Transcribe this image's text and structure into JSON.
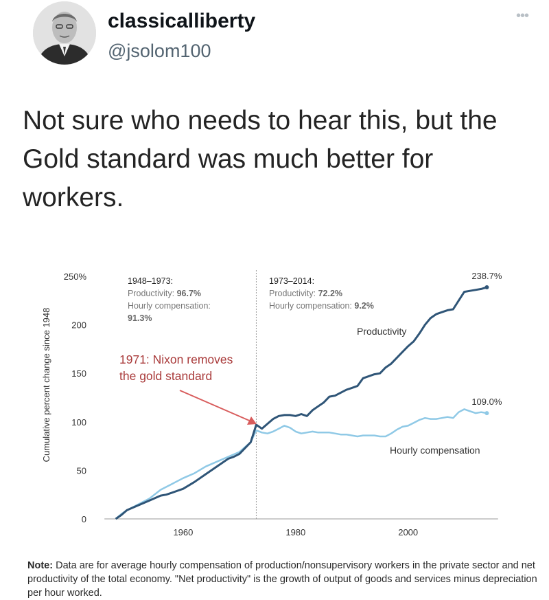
{
  "tweet": {
    "display_name": "classicalliberty",
    "handle": "@jsolom100",
    "more_icon": "more-dots-icon",
    "text": "Not sure who needs to hear this, but the Gold standard was much better for workers."
  },
  "chart_data": {
    "type": "line",
    "ylabel": "Cumulative percent change since 1948",
    "ylim": [
      0,
      250
    ],
    "xlim": [
      1945,
      2017
    ],
    "y_ticks": [
      "250%",
      "200",
      "150",
      "100",
      "50",
      "0"
    ],
    "x_ticks": [
      "1960",
      "1980",
      "2000"
    ],
    "series": [
      {
        "name": "Productivity",
        "color": "#2f5577",
        "end_label": "238.7%",
        "points": [
          [
            1948,
            0
          ],
          [
            1949,
            4
          ],
          [
            1950,
            9
          ],
          [
            1952,
            14
          ],
          [
            1954,
            19
          ],
          [
            1956,
            24
          ],
          [
            1957,
            25
          ],
          [
            1958,
            27
          ],
          [
            1960,
            31
          ],
          [
            1962,
            38
          ],
          [
            1964,
            46
          ],
          [
            1966,
            54
          ],
          [
            1967,
            58
          ],
          [
            1968,
            62
          ],
          [
            1969,
            64
          ],
          [
            1970,
            67
          ],
          [
            1971,
            73
          ],
          [
            1972,
            79
          ],
          [
            1973,
            97
          ],
          [
            1974,
            93
          ],
          [
            1975,
            98
          ],
          [
            1976,
            103
          ],
          [
            1977,
            106
          ],
          [
            1978,
            107
          ],
          [
            1979,
            107
          ],
          [
            1980,
            106
          ],
          [
            1981,
            108
          ],
          [
            1982,
            106
          ],
          [
            1983,
            112
          ],
          [
            1984,
            116
          ],
          [
            1985,
            120
          ],
          [
            1986,
            126
          ],
          [
            1987,
            127
          ],
          [
            1988,
            130
          ],
          [
            1989,
            133
          ],
          [
            1990,
            135
          ],
          [
            1991,
            137
          ],
          [
            1992,
            145
          ],
          [
            1993,
            147
          ],
          [
            1994,
            149
          ],
          [
            1995,
            150
          ],
          [
            1996,
            156
          ],
          [
            1997,
            160
          ],
          [
            1998,
            166
          ],
          [
            1999,
            172
          ],
          [
            2000,
            178
          ],
          [
            2001,
            183
          ],
          [
            2002,
            191
          ],
          [
            2003,
            200
          ],
          [
            2004,
            207
          ],
          [
            2005,
            211
          ],
          [
            2006,
            213
          ],
          [
            2007,
            215
          ],
          [
            2008,
            216
          ],
          [
            2009,
            225
          ],
          [
            2010,
            234
          ],
          [
            2011,
            235
          ],
          [
            2012,
            236
          ],
          [
            2013,
            237
          ],
          [
            2014,
            238.7
          ]
        ]
      },
      {
        "name": "Hourly compensation",
        "color": "#8fc9e6",
        "end_label": "109.0%",
        "points": [
          [
            1948,
            0
          ],
          [
            1949,
            5
          ],
          [
            1950,
            9
          ],
          [
            1952,
            15
          ],
          [
            1954,
            21
          ],
          [
            1956,
            30
          ],
          [
            1958,
            36
          ],
          [
            1960,
            42
          ],
          [
            1962,
            47
          ],
          [
            1964,
            54
          ],
          [
            1966,
            59
          ],
          [
            1968,
            64
          ],
          [
            1970,
            69
          ],
          [
            1972,
            79
          ],
          [
            1973,
            91.3
          ],
          [
            1974,
            89
          ],
          [
            1975,
            88
          ],
          [
            1976,
            90
          ],
          [
            1977,
            93
          ],
          [
            1978,
            96
          ],
          [
            1979,
            94
          ],
          [
            1980,
            90
          ],
          [
            1981,
            88
          ],
          [
            1982,
            89
          ],
          [
            1983,
            90
          ],
          [
            1984,
            89
          ],
          [
            1985,
            89
          ],
          [
            1986,
            89
          ],
          [
            1987,
            88
          ],
          [
            1988,
            87
          ],
          [
            1989,
            87
          ],
          [
            1990,
            86
          ],
          [
            1991,
            85
          ],
          [
            1992,
            86
          ],
          [
            1993,
            86
          ],
          [
            1994,
            86
          ],
          [
            1995,
            85
          ],
          [
            1996,
            85
          ],
          [
            1997,
            88
          ],
          [
            1998,
            92
          ],
          [
            1999,
            95
          ],
          [
            2000,
            96
          ],
          [
            2001,
            99
          ],
          [
            2002,
            102
          ],
          [
            2003,
            104
          ],
          [
            2004,
            103
          ],
          [
            2005,
            103
          ],
          [
            2006,
            104
          ],
          [
            2007,
            105
          ],
          [
            2008,
            104
          ],
          [
            2009,
            110
          ],
          [
            2010,
            113
          ],
          [
            2011,
            111
          ],
          [
            2012,
            109
          ],
          [
            2013,
            110
          ],
          [
            2014,
            109.0
          ]
        ]
      }
    ],
    "divider_year": 1973,
    "period_1": {
      "heading": "1948–1973:",
      "line1": "Productivity: ",
      "value1": "96.7%",
      "line2": "Hourly compensation:",
      "value2": "91.3%"
    },
    "period_2": {
      "heading": "1973–2014:",
      "line1": "Productivity: ",
      "value1": "72.2%",
      "line2": "Hourly compensation: ",
      "value2": "9.2%"
    },
    "series_labels": {
      "productivity": "Productivity",
      "compensation": "Hourly compensation"
    },
    "annotation": {
      "line1": "1971: Nixon removes",
      "line2": "the gold standard",
      "color": "#a93a3a",
      "arrow_color": "#d85c5c"
    }
  },
  "note": {
    "label": "Note:",
    "text": " Data are for average hourly compensation of production/nonsupervisory workers in the private sector and net productivity of the total economy. \"Net productivity\" is the growth of output of goods and services minus depreciation per hour worked."
  }
}
